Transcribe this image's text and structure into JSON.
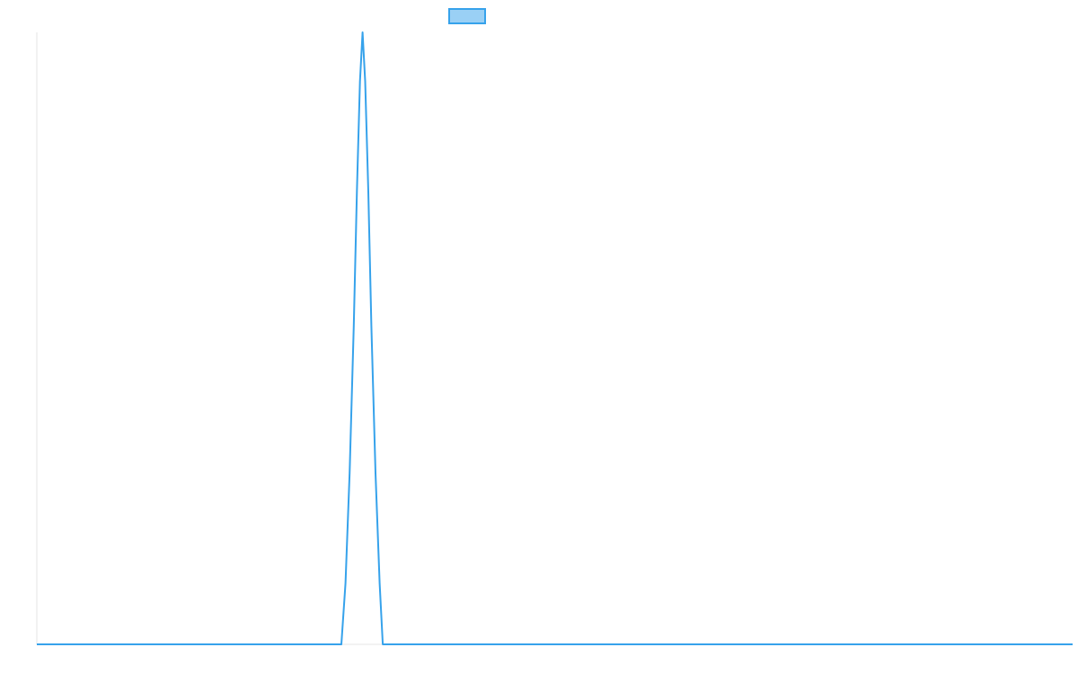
{
  "chart_data": {
    "type": "line",
    "title": "",
    "xlabel": "",
    "ylabel": "",
    "grid": false,
    "legend": {
      "position": "top",
      "entries": [
        {
          "label": "",
          "color": "#36a2eb",
          "fill": "#9ad0f5"
        }
      ]
    },
    "xlim": [
      0,
      100
    ],
    "ylim": [
      0,
      1
    ],
    "series": [
      {
        "color": "#36a2eb",
        "points": [
          [
            0,
            0
          ],
          [
            29.4,
            0
          ],
          [
            29.8,
            0.1
          ],
          [
            30.2,
            0.28
          ],
          [
            30.6,
            0.52
          ],
          [
            30.9,
            0.74
          ],
          [
            31.2,
            0.92
          ],
          [
            31.45,
            1.0
          ],
          [
            31.7,
            0.92
          ],
          [
            32.0,
            0.74
          ],
          [
            32.3,
            0.52
          ],
          [
            32.7,
            0.28
          ],
          [
            33.1,
            0.1
          ],
          [
            33.4,
            0
          ],
          [
            100,
            0
          ]
        ]
      }
    ]
  }
}
